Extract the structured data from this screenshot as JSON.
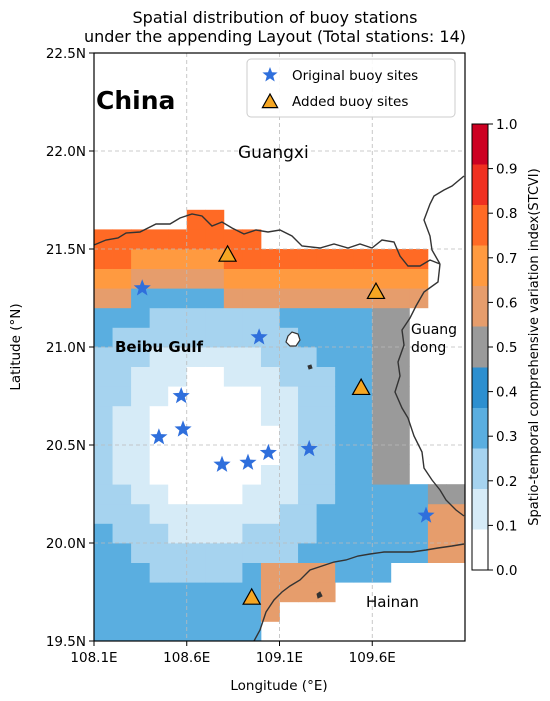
{
  "title": {
    "line1": "Spatial distribution of buoy stations",
    "line2": "under the appending Layout (Total stations: 14)"
  },
  "map": {
    "labels": {
      "china": "China",
      "guangxi": "Guangxi",
      "beibu_gulf": "Beibu Gulf",
      "guangdong_1": "Guang",
      "guangdong_2": "dong",
      "hainan": "Hainan"
    },
    "x_axis": {
      "label": "Longitude (°E)",
      "range": [
        108.1,
        110.1
      ],
      "ticks": [
        {
          "value": 108.1,
          "label": "108.1E"
        },
        {
          "value": 108.6,
          "label": "108.6E"
        },
        {
          "value": 109.1,
          "label": "109.1E"
        },
        {
          "value": 109.6,
          "label": "109.6E"
        }
      ]
    },
    "y_axis": {
      "label": "Latitude (°N)",
      "range": [
        19.5,
        22.5
      ],
      "ticks": [
        {
          "value": 19.5,
          "label": "19.5N"
        },
        {
          "value": 20.0,
          "label": "20.0N"
        },
        {
          "value": 20.5,
          "label": "20.5N"
        },
        {
          "value": 21.0,
          "label": "21.0N"
        },
        {
          "value": 21.5,
          "label": "21.5N"
        },
        {
          "value": 22.0,
          "label": "22.0N"
        },
        {
          "value": 22.5,
          "label": "22.5N"
        }
      ]
    },
    "grid": true,
    "legend": {
      "position": "top-right",
      "entries": [
        {
          "label": "Original buoy sites",
          "marker": "star-icon",
          "color": "#2f6fdc"
        },
        {
          "label": "Added buoy sites",
          "marker": "triangle-icon",
          "color": "#f5a623"
        }
      ]
    },
    "original_sites": [
      {
        "lon": 108.36,
        "lat": 21.3
      },
      {
        "lon": 108.99,
        "lat": 21.05
      },
      {
        "lon": 108.57,
        "lat": 20.75
      },
      {
        "lon": 108.45,
        "lat": 20.54
      },
      {
        "lon": 108.58,
        "lat": 20.58
      },
      {
        "lon": 108.79,
        "lat": 20.4
      },
      {
        "lon": 108.93,
        "lat": 20.41
      },
      {
        "lon": 109.04,
        "lat": 20.46
      },
      {
        "lon": 109.26,
        "lat": 20.48
      },
      {
        "lon": 109.89,
        "lat": 20.14
      }
    ],
    "added_sites": [
      {
        "lon": 108.82,
        "lat": 21.47
      },
      {
        "lon": 109.62,
        "lat": 21.28
      },
      {
        "lon": 109.54,
        "lat": 20.79
      },
      {
        "lon": 108.95,
        "lat": 19.72
      }
    ],
    "colorbar": {
      "label": "Spatio-temporal comprehensive variation index(STCVI)",
      "range": [
        0.0,
        1.0
      ],
      "ticks": [
        "0.0",
        "0.1",
        "0.2",
        "0.3",
        "0.4",
        "0.5",
        "0.6",
        "0.7",
        "0.8",
        "0.9",
        "1.0"
      ],
      "colors": [
        "#ffffff",
        "#d6ebf7",
        "#a6d3ef",
        "#5aaee0",
        "#2c8fd0",
        "#9a9a9a",
        "#e69d6c",
        "#ff9a40",
        "#ff6a25",
        "#f03020",
        "#cc0022"
      ]
    },
    "land_color": "#ffffff",
    "coast_color": "#333333"
  }
}
